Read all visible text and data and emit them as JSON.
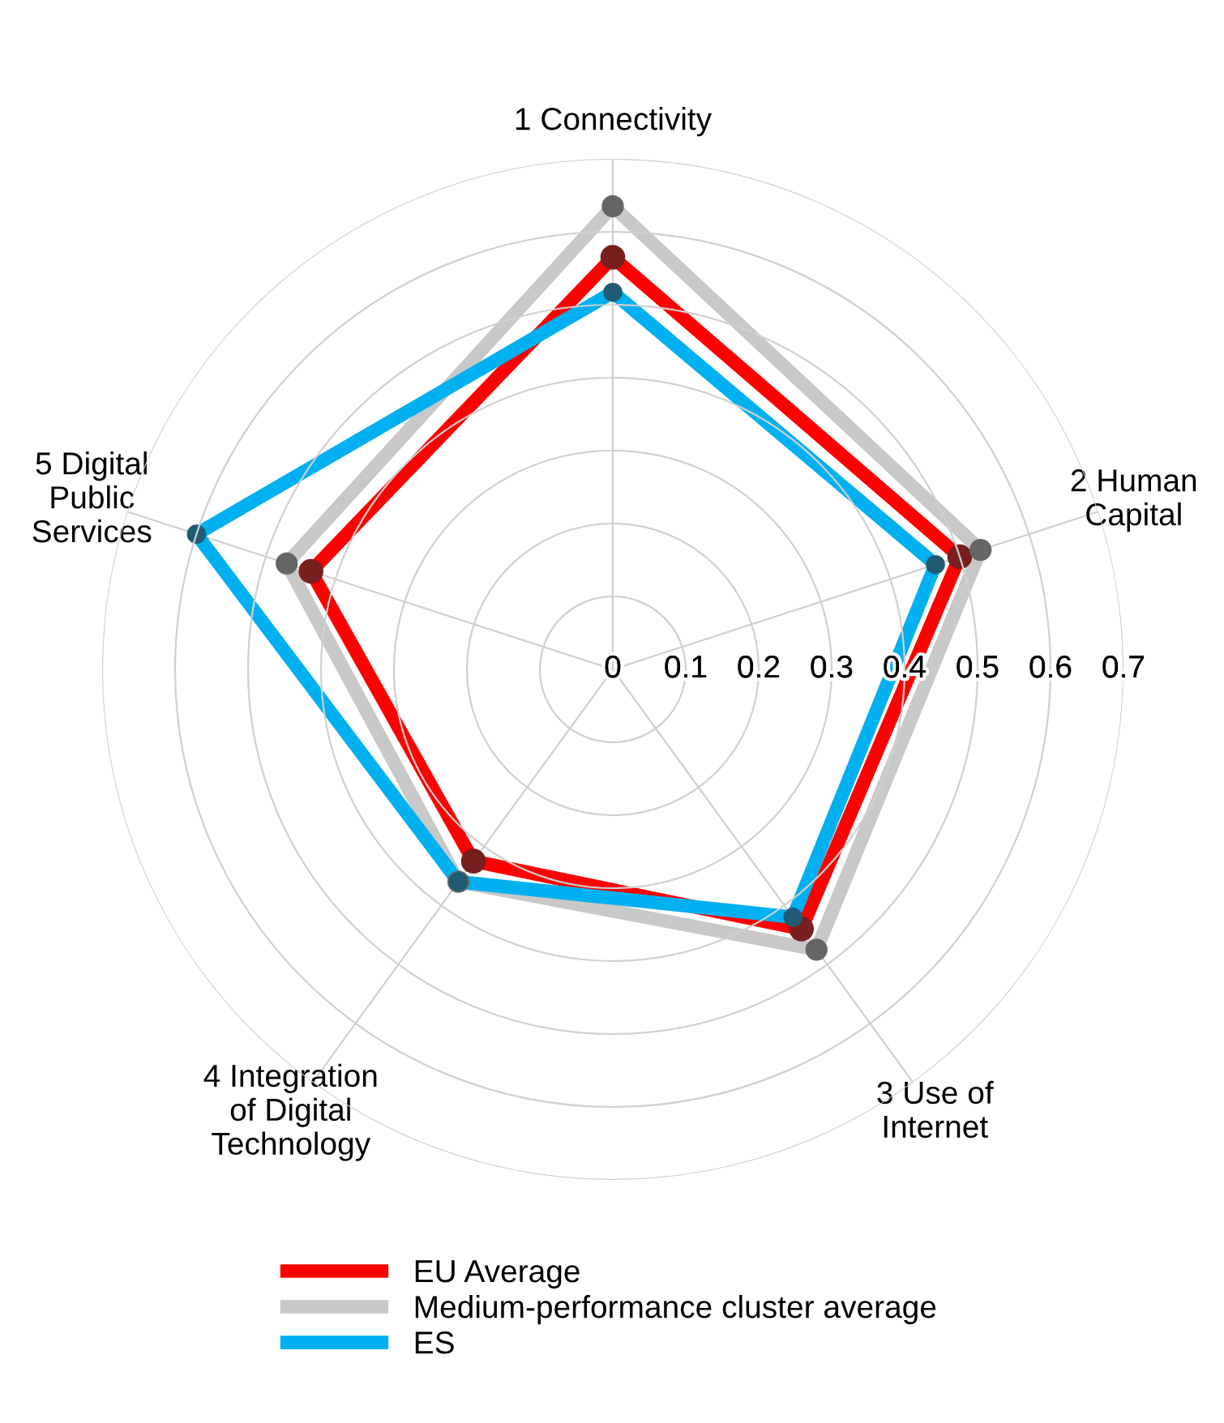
{
  "chart_data": {
    "type": "radar",
    "categories": [
      "1 Connectivity",
      "2 Human\nCapital",
      "3 Use of\nInternet",
      "4 Integration\nof Digital\nTechnology",
      "5 Digital\nPublic\nServices"
    ],
    "series": [
      {
        "name": "EU Average",
        "color": "#ff0000",
        "values": [
          0.565,
          0.5,
          0.44,
          0.325,
          0.435
        ]
      },
      {
        "name": "Medium-performance cluster average",
        "color": "#c8c8c8",
        "values": [
          0.635,
          0.53,
          0.475,
          0.36,
          0.47
        ]
      },
      {
        "name": "ES",
        "color": "#00b0f0",
        "values": [
          0.517,
          0.465,
          0.42,
          0.36,
          0.6
        ]
      }
    ],
    "ylim": [
      0,
      0.7
    ],
    "yticks": [
      0,
      0.1,
      0.2,
      0.3,
      0.4,
      0.5,
      0.6,
      0.7
    ],
    "grid": true,
    "legend": "bottom",
    "marker": "circle",
    "line_style": "solid"
  }
}
